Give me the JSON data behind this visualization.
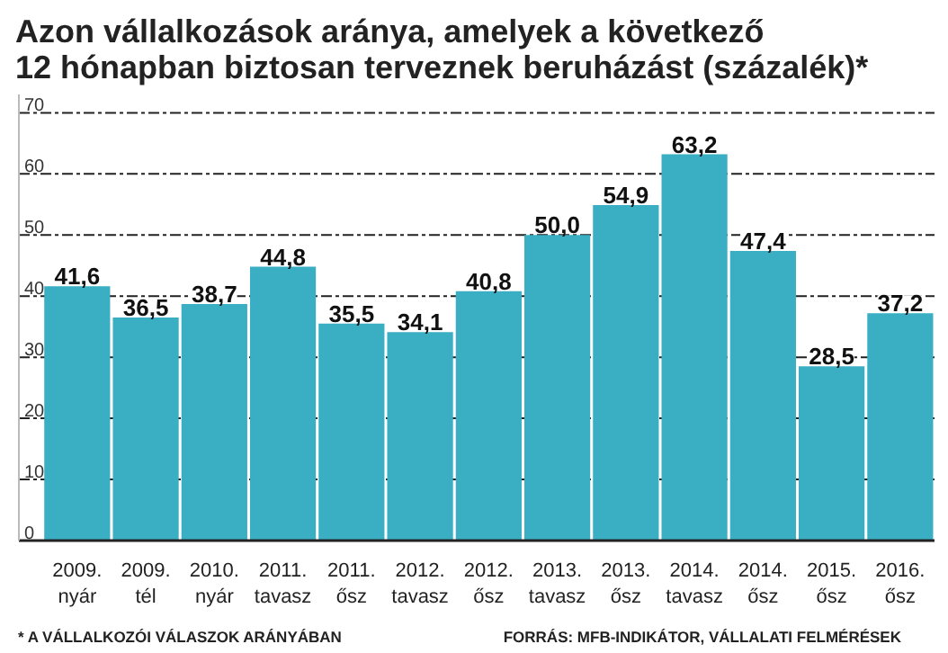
{
  "chart_data": {
    "type": "bar",
    "title": "Azon vállalkozások aránya, amelyek a következő\n12 hónapban biztosan terveznek beruházást (százalék)*",
    "categories": [
      "2009.\nnyár",
      "2009.\ntél",
      "2010.\nnyár",
      "2011.\ntavasz",
      "2011.\nősz",
      "2012.\ntavasz",
      "2012.\nősz",
      "2013.\ntavasz",
      "2013.\nősz",
      "2014.\ntavasz",
      "2014.\nősz",
      "2015.\nősz",
      "2016.\nősz"
    ],
    "values": [
      41.6,
      36.5,
      38.7,
      44.8,
      35.5,
      34.1,
      40.8,
      50.0,
      54.9,
      63.2,
      47.4,
      28.5,
      37.2
    ],
    "value_labels": [
      "41,6",
      "36,5",
      "38,7",
      "44,8",
      "35,5",
      "34,1",
      "40,8",
      "50,0",
      "54,9",
      "63,2",
      "47,4",
      "28,5",
      "37,2"
    ],
    "color": "#3aaec3",
    "ylim": [
      0,
      73
    ],
    "yticks": [
      0,
      10,
      20,
      30,
      40,
      50,
      60,
      70
    ],
    "grid": "y",
    "annotations": [
      "* A VÁLLALKOZÓI VÁLASZOK ARÁNYÁBAN",
      "FORRÁS: MFB-INDIKÁTOR, VÁLLALATI FELMÉRÉSEK"
    ]
  }
}
